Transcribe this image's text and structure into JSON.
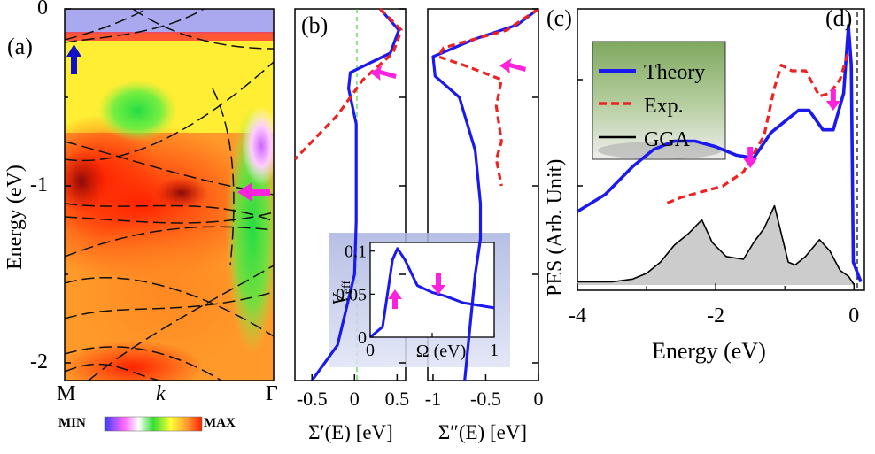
{
  "chart_data": [
    {
      "panel": "(a)",
      "type": "heatmap",
      "ylabel": "Energy (eV)",
      "xlabel": "k",
      "x_ticks": [
        "M",
        "Γ"
      ],
      "y_ticks": [
        "0",
        "-1",
        "-2"
      ],
      "ylim": [
        -2.1,
        0
      ],
      "colorbar": {
        "min_label": "MIN",
        "max_label": "MAX",
        "colors": [
          "#3b3bff",
          "#ff66ff",
          "#ffffff",
          "#33dd33",
          "#ffff33",
          "#ff9933",
          "#ff2200"
        ]
      },
      "arrows": [
        {
          "color": "#1010c8",
          "direction": "up",
          "energy": -0.2
        },
        {
          "color": "#ff22dd",
          "direction": "left",
          "energy": -1.05
        }
      ],
      "bands_overlay": "dashed black"
    },
    {
      "panel": "(b)",
      "type": "line",
      "xlabel": "Σ′(E) [eV]",
      "x_ticks": [
        "-0.5",
        "0",
        "0.5"
      ],
      "xlim": [
        -0.7,
        0.6
      ],
      "ylim": [
        -2.1,
        0
      ],
      "series": [
        {
          "color": "#1a1aee",
          "style": "solid",
          "points": [
            [
              0.3,
              0
            ],
            [
              0.52,
              -0.12
            ],
            [
              0.42,
              -0.25
            ],
            [
              -0.05,
              -0.36
            ],
            [
              -0.07,
              -0.45
            ],
            [
              0.02,
              -0.65
            ],
            [
              0.02,
              -1.2
            ],
            [
              0.0,
              -1.5
            ],
            [
              -0.2,
              -1.9
            ],
            [
              -0.5,
              -2.1
            ]
          ]
        },
        {
          "color": "#ee2222",
          "style": "dashed",
          "points": [
            [
              0.3,
              0
            ],
            [
              0.55,
              -0.12
            ],
            [
              0.45,
              -0.25
            ],
            [
              0.1,
              -0.4
            ],
            [
              -0.2,
              -0.6
            ],
            [
              -0.7,
              -0.85
            ]
          ]
        }
      ],
      "arrows": [
        {
          "color": "#ff22dd",
          "energy": -0.38
        }
      ]
    },
    {
      "panel": "(b)",
      "type": "line",
      "xlabel": "Σ″(E) [eV]",
      "x_ticks": [
        "-1",
        "-0.5",
        "0"
      ],
      "xlim": [
        -1.05,
        0
      ],
      "ylim": [
        -2.1,
        0
      ],
      "series": [
        {
          "color": "#1a1aee",
          "style": "solid",
          "points": [
            [
              0,
              0
            ],
            [
              -0.2,
              -0.09
            ],
            [
              -0.6,
              -0.17
            ],
            [
              -1.0,
              -0.27
            ],
            [
              -0.98,
              -0.38
            ],
            [
              -0.75,
              -0.5
            ],
            [
              -0.6,
              -0.8
            ],
            [
              -0.55,
              -1.1
            ],
            [
              -0.55,
              -1.3
            ],
            [
              -0.6,
              -1.5
            ],
            [
              -0.7,
              -2.1
            ]
          ]
        },
        {
          "color": "#ee2222",
          "style": "dashed",
          "points": [
            [
              0,
              0
            ],
            [
              -0.3,
              -0.12
            ],
            [
              -0.9,
              -0.22
            ],
            [
              -0.95,
              -0.27
            ],
            [
              -0.7,
              -0.32
            ],
            [
              -0.35,
              -0.4
            ],
            [
              -0.4,
              -0.55
            ],
            [
              -0.35,
              -0.75
            ],
            [
              -0.4,
              -0.85
            ],
            [
              -0.35,
              -1.0
            ]
          ]
        }
      ],
      "arrows": [
        {
          "color": "#ff22dd",
          "energy": -0.32
        }
      ]
    },
    {
      "panel": "inset",
      "type": "line",
      "ylabel": "V_eff",
      "ylabel_base": "V",
      "ylabel_sub": "eff",
      "xlabel": "Ω (eV)",
      "x_ticks": [
        "0",
        "0.5",
        "1"
      ],
      "y_ticks": [
        "0",
        "0.05",
        "0.1"
      ],
      "xlim": [
        0,
        1
      ],
      "ylim": [
        0,
        0.11
      ],
      "series": [
        {
          "color": "#1a1aee",
          "style": "solid",
          "points": [
            [
              0,
              0
            ],
            [
              0.1,
              0.012
            ],
            [
              0.18,
              0.09
            ],
            [
              0.22,
              0.103
            ],
            [
              0.28,
              0.09
            ],
            [
              0.38,
              0.06
            ],
            [
              0.5,
              0.052
            ],
            [
              0.6,
              0.048
            ],
            [
              0.75,
              0.04
            ],
            [
              1.0,
              0.034
            ]
          ]
        }
      ],
      "arrows": [
        {
          "color": "#ff22dd",
          "direction": "up",
          "x": 0.2
        },
        {
          "color": "#ff22dd",
          "direction": "down",
          "x": 0.55
        }
      ]
    },
    {
      "panel": "(c)/(d)",
      "type": "line",
      "xlabel": "Energy (eV)",
      "ylabel": "PES (Arb. Unit)",
      "x_ticks": [
        "-4",
        "-2",
        "0"
      ],
      "xlim": [
        -4,
        0.15
      ],
      "ylim": [
        0,
        1
      ],
      "legend": {
        "placement": "top-left",
        "entries": [
          "Theory",
          "Exp.",
          "GGA"
        ]
      },
      "series": [
        {
          "name": "Theory",
          "color": "#1a1aee",
          "style": "solid",
          "points": [
            [
              -4,
              0.28
            ],
            [
              -3.6,
              0.34
            ],
            [
              -3.2,
              0.44
            ],
            [
              -2.9,
              0.5
            ],
            [
              -2.6,
              0.53
            ],
            [
              -2.3,
              0.53
            ],
            [
              -2.0,
              0.51
            ],
            [
              -1.7,
              0.48
            ],
            [
              -1.45,
              0.47
            ],
            [
              -1.2,
              0.56
            ],
            [
              -1.0,
              0.6
            ],
            [
              -0.8,
              0.64
            ],
            [
              -0.65,
              0.64
            ],
            [
              -0.45,
              0.57
            ],
            [
              -0.3,
              0.57
            ],
            [
              -0.15,
              0.7
            ],
            [
              -0.08,
              0.94
            ],
            [
              -0.04,
              0.8
            ],
            [
              -0.01,
              0.1
            ],
            [
              0.1,
              0.03
            ]
          ]
        },
        {
          "name": "Exp.",
          "color": "#ee2222",
          "style": "dashed",
          "points": [
            [
              -2.7,
              0.31
            ],
            [
              -2.5,
              0.33
            ],
            [
              -2.2,
              0.35
            ],
            [
              -1.9,
              0.37
            ],
            [
              -1.6,
              0.42
            ],
            [
              -1.3,
              0.55
            ],
            [
              -1.15,
              0.72
            ],
            [
              -1.05,
              0.8
            ],
            [
              -0.9,
              0.78
            ],
            [
              -0.7,
              0.78
            ],
            [
              -0.5,
              0.69
            ],
            [
              -0.35,
              0.7
            ],
            [
              -0.2,
              0.75
            ],
            [
              -0.08,
              0.85
            ]
          ]
        },
        {
          "name": "GGA",
          "color": "#000000",
          "style": "solid",
          "fill": "#cccccc",
          "points": [
            [
              -4,
              0.03
            ],
            [
              -3.5,
              0.03
            ],
            [
              -3.2,
              0.04
            ],
            [
              -3.0,
              0.06
            ],
            [
              -2.8,
              0.1
            ],
            [
              -2.6,
              0.16
            ],
            [
              -2.4,
              0.2
            ],
            [
              -2.2,
              0.25
            ],
            [
              -2.05,
              0.17
            ],
            [
              -1.85,
              0.12
            ],
            [
              -1.6,
              0.11
            ],
            [
              -1.45,
              0.17
            ],
            [
              -1.3,
              0.22
            ],
            [
              -1.15,
              0.3
            ],
            [
              -1.05,
              0.2
            ],
            [
              -0.95,
              0.1
            ],
            [
              -0.85,
              0.09
            ],
            [
              -0.7,
              0.12
            ],
            [
              -0.5,
              0.18
            ],
            [
              -0.35,
              0.14
            ],
            [
              -0.2,
              0.07
            ],
            [
              -0.08,
              0.05
            ],
            [
              0,
              0.02
            ]
          ]
        }
      ],
      "arrows": [
        {
          "color": "#ff22dd",
          "direction": "down",
          "x": -1.5
        },
        {
          "color": "#ff22dd",
          "direction": "down",
          "x": -0.3
        }
      ]
    }
  ],
  "labels": {
    "a": "(a)",
    "b": "(b)",
    "c": "(c)",
    "d": "(d)",
    "energy_a": "Energy (eV)",
    "k": "k",
    "M": "M",
    "gamma": "Γ",
    "min": "MIN",
    "max": "MAX",
    "a_y0": "0",
    "a_y1": "-1",
    "a_y2": "-2",
    "pes": "PES (Arb. Unit)",
    "energy_c": "Energy (eV)"
  }
}
